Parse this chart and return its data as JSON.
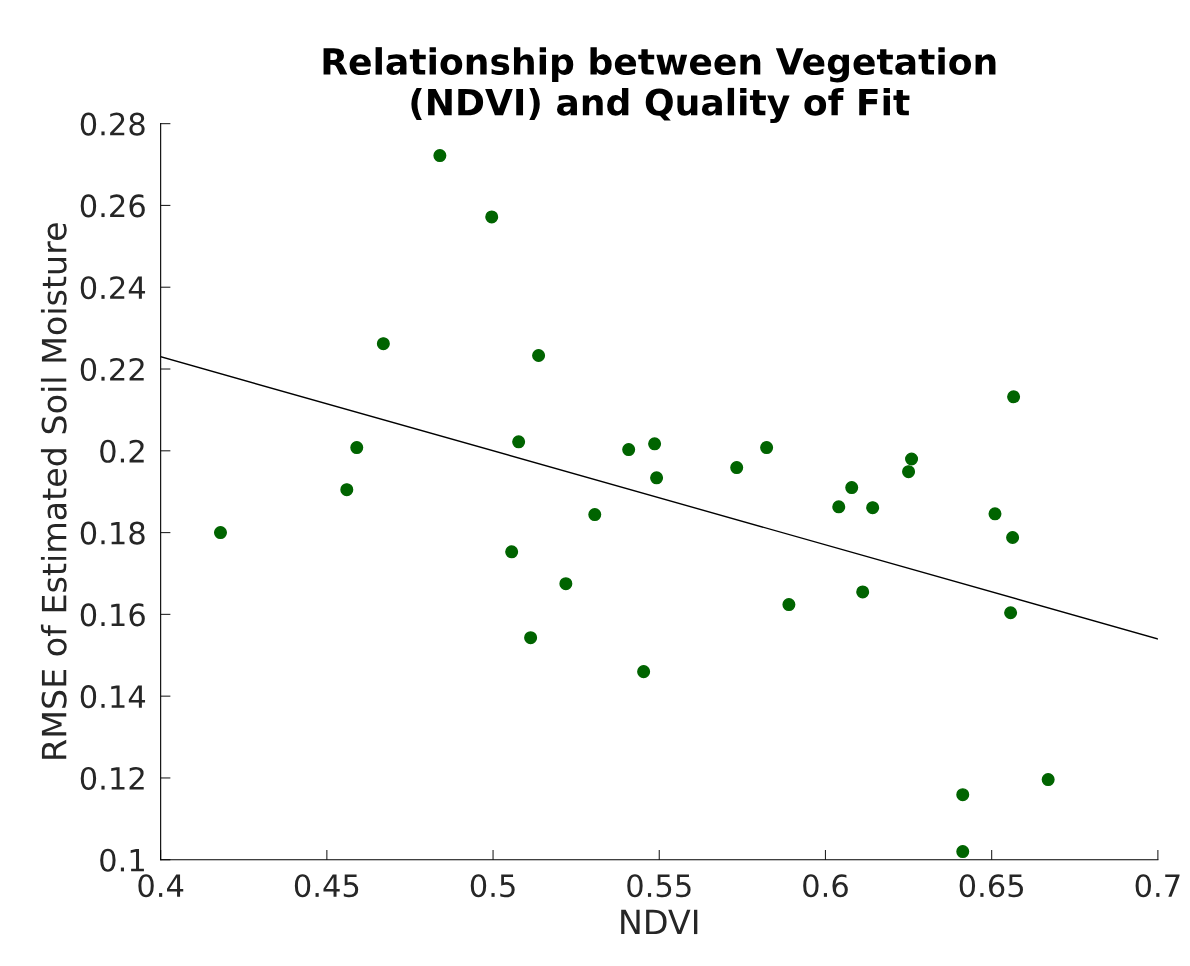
{
  "chart_data": {
    "type": "scatter",
    "title": "Relationship between Vegetation\n(NDVI) and Quality of Fit",
    "xlabel": "NDVI",
    "ylabel": "RMSE of Estimated Soil Moisture",
    "xlim": [
      0.4,
      0.7
    ],
    "ylim": [
      0.1,
      0.28
    ],
    "xticks": [
      0.4,
      0.45,
      0.5,
      0.55,
      0.6,
      0.65,
      0.7
    ],
    "yticks": [
      0.1,
      0.12,
      0.14,
      0.16,
      0.18,
      0.2,
      0.22,
      0.24,
      0.26,
      0.28
    ],
    "grid": false,
    "series": [
      {
        "marker": "circle",
        "color": "#006400",
        "x": [
          0.418,
          0.456,
          0.459,
          0.467,
          0.484,
          0.4996,
          0.5056,
          0.5077,
          0.5113,
          0.5137,
          0.5219,
          0.5306,
          0.5408,
          0.5453,
          0.5486,
          0.5492,
          0.5733,
          0.5823,
          0.589,
          0.604,
          0.6079,
          0.6112,
          0.6142,
          0.625,
          0.6259,
          0.651,
          0.6563,
          0.6557,
          0.6566,
          0.667,
          0.6413,
          0.6413
        ],
        "values": [
          0.18,
          0.1905,
          0.2008,
          0.2262,
          0.2722,
          0.2572,
          0.1753,
          0.2022,
          0.1543,
          0.2233,
          0.1675,
          0.1844,
          0.2003,
          0.146,
          0.2017,
          0.1934,
          0.1959,
          0.2008,
          0.1624,
          0.1863,
          0.191,
          0.1655,
          0.1861,
          0.1949,
          0.198,
          0.1846,
          0.1788,
          0.1604,
          0.2132,
          0.1196,
          0.1159,
          0.102
        ]
      },
      {
        "type": "line",
        "marker": "none",
        "color": "#000000",
        "x": [
          0.4,
          0.7
        ],
        "values": [
          0.223,
          0.154
        ]
      }
    ]
  }
}
